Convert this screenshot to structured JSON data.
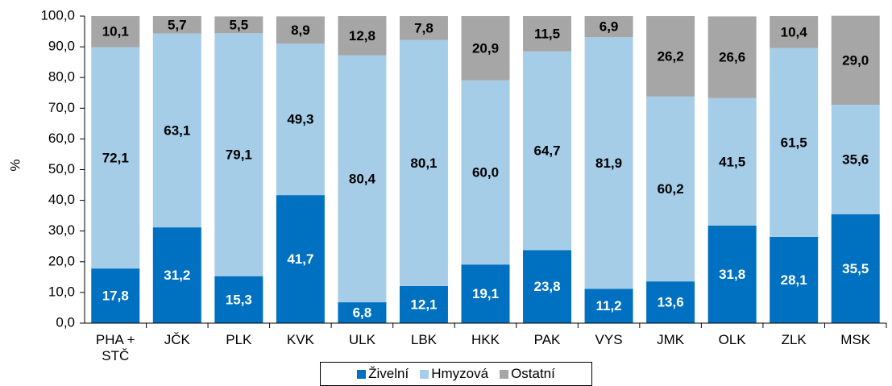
{
  "chart_data": {
    "type": "stacked_bar",
    "y_label": "%",
    "categories": [
      "PHA + STČ",
      "JČK",
      "PLK",
      "KVK",
      "ULK",
      "LBK",
      "HKK",
      "PAK",
      "VYS",
      "JMK",
      "OLK",
      "ZLK",
      "MSK"
    ],
    "series": [
      {
        "name": "Živelní",
        "color": "#0070c0",
        "label_color": "#ffffff",
        "values": [
          17.8,
          31.2,
          15.3,
          41.7,
          6.8,
          12.1,
          19.1,
          23.8,
          11.2,
          13.6,
          31.8,
          28.1,
          35.5
        ],
        "value_labels": [
          "17,8",
          "31,2",
          "15,3",
          "41,7",
          "6,8",
          "12,1",
          "19,1",
          "23,8",
          "11,2",
          "13,6",
          "31,8",
          "28,1",
          "35,5"
        ]
      },
      {
        "name": "Hmyzová",
        "color": "#a6cde8",
        "label_color": "#000000",
        "values": [
          72.1,
          63.1,
          79.1,
          49.3,
          80.4,
          80.1,
          60.0,
          64.7,
          81.9,
          60.2,
          41.5,
          61.5,
          35.6
        ],
        "value_labels": [
          "72,1",
          "63,1",
          "79,1",
          "49,3",
          "80,4",
          "80,1",
          "60,0",
          "64,7",
          "81,9",
          "60,2",
          "41,5",
          "61,5",
          "35,6"
        ]
      },
      {
        "name": "Ostatní",
        "color": "#a6a6a6",
        "label_color": "#000000",
        "values": [
          10.1,
          5.7,
          5.5,
          8.9,
          12.8,
          7.8,
          20.9,
          11.5,
          6.9,
          26.2,
          26.6,
          10.4,
          29.0
        ],
        "value_labels": [
          "10,1",
          "5,7",
          "5,5",
          "8,9",
          "12,8",
          "7,8",
          "20,9",
          "11,5",
          "6,9",
          "26,2",
          "26,6",
          "10,4",
          "29,0"
        ]
      }
    ],
    "ylim": [
      0,
      100
    ],
    "yticks": [
      {
        "value": 0,
        "label": "0,0"
      },
      {
        "value": 10,
        "label": "10,0"
      },
      {
        "value": 20,
        "label": "20,0"
      },
      {
        "value": 30,
        "label": "30,0"
      },
      {
        "value": 40,
        "label": "40,0"
      },
      {
        "value": 50,
        "label": "50,0"
      },
      {
        "value": 60,
        "label": "60,0"
      },
      {
        "value": 70,
        "label": "70,0"
      },
      {
        "value": 80,
        "label": "80,0"
      },
      {
        "value": 90,
        "label": "90,0"
      },
      {
        "value": 100,
        "label": "100,0"
      }
    ],
    "grid": false,
    "legend": "bottom"
  }
}
